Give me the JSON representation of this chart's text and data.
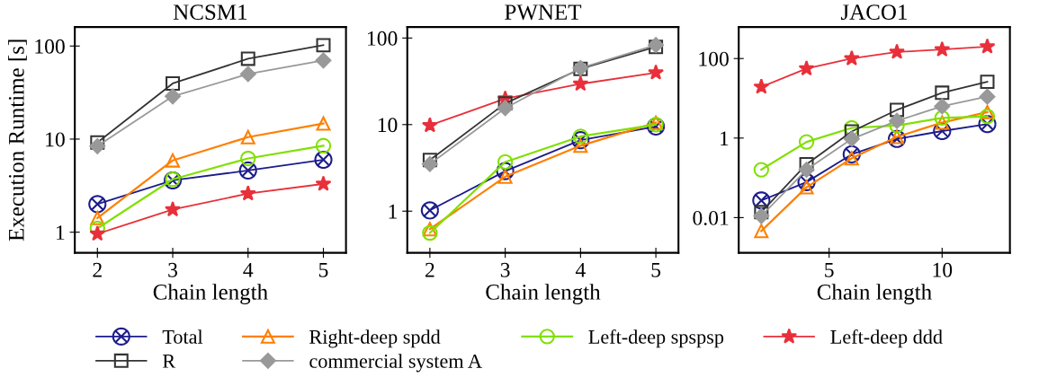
{
  "chart_data": [
    {
      "type": "line",
      "title": "NCSM1",
      "xlabel": "Chain length",
      "ylabel": "Execution Runtime [s]",
      "log": "y",
      "x": [
        2,
        3,
        4,
        5
      ],
      "xlim": [
        1.7,
        5.3
      ],
      "xticks": [
        2,
        3,
        4,
        5
      ],
      "ylim": [
        0.6,
        160
      ],
      "yticks": [
        1,
        10,
        100
      ],
      "legend": "bottom",
      "grid": false,
      "series": [
        {
          "name": "Total",
          "color": "#1c1c8c",
          "marker": "cross",
          "values": [
            2.0,
            3.6,
            4.6,
            6.0
          ]
        },
        {
          "name": "Right-deep spdd",
          "color": "#ff7f00",
          "marker": "triangle",
          "values": [
            1.42,
            5.9,
            10.5,
            14.7
          ]
        },
        {
          "name": "Left-deep spspsp",
          "color": "#80e000",
          "marker": "circle",
          "values": [
            1.1,
            3.7,
            6.2,
            8.5
          ]
        },
        {
          "name": "Left-deep ddd",
          "color": "#e8303a",
          "marker": "star",
          "values": [
            0.96,
            1.75,
            2.6,
            3.3
          ]
        },
        {
          "name": "R",
          "color": "#333333",
          "marker": "square",
          "values": [
            9.2,
            39.6,
            73,
            102
          ]
        },
        {
          "name": "commercial system A",
          "color": "#999999",
          "marker": "diamond",
          "values": [
            8.4,
            28.8,
            50,
            70
          ]
        }
      ]
    },
    {
      "type": "line",
      "title": "PWNET",
      "xlabel": "Chain length",
      "log": "y",
      "x": [
        2,
        3,
        4,
        5
      ],
      "xlim": [
        1.7,
        5.3
      ],
      "xticks": [
        2,
        3,
        4,
        5
      ],
      "ylim": [
        0.33,
        134
      ],
      "yticks": [
        1,
        10,
        100
      ],
      "grid": false,
      "series": [
        {
          "color": "#1c1c8c",
          "marker": "cross",
          "values": [
            1.02,
            2.9,
            6.6,
            9.5
          ]
        },
        {
          "color": "#ff7f00",
          "marker": "triangle",
          "values": [
            0.62,
            2.5,
            5.7,
            10.5
          ]
        },
        {
          "color": "#80e000",
          "marker": "circle",
          "values": [
            0.56,
            3.7,
            7.3,
            10
          ]
        },
        {
          "color": "#e8303a",
          "marker": "star",
          "values": [
            9.8,
            19.9,
            29.5,
            39.8
          ]
        },
        {
          "color": "#333333",
          "marker": "square",
          "values": [
            3.9,
            17.6,
            44,
            79
          ]
        },
        {
          "color": "#999999",
          "marker": "diamond",
          "values": [
            3.5,
            15.5,
            45,
            83
          ]
        }
      ]
    },
    {
      "type": "line",
      "title": "JACO1",
      "xlabel": "Chain length",
      "log": "y",
      "x": [
        2,
        4,
        6,
        8,
        10,
        12
      ],
      "xlim": [
        1,
        13
      ],
      "xticks": [
        5,
        10
      ],
      "ylim": [
        0.0013,
        620
      ],
      "yticks": [
        0.01,
        1,
        100
      ],
      "grid": false,
      "series": [
        {
          "color": "#1c1c8c",
          "marker": "cross",
          "values": [
            0.027,
            0.078,
            0.39,
            0.95,
            1.5,
            2.25
          ]
        },
        {
          "color": "#ff7f00",
          "marker": "triangle",
          "values": [
            0.0046,
            0.058,
            0.31,
            1.07,
            2.45,
            4.5
          ]
        },
        {
          "color": "#80e000",
          "marker": "circle",
          "values": [
            0.16,
            0.8,
            1.8,
            2.07,
            3.2,
            3.5
          ]
        },
        {
          "color": "#e8303a",
          "marker": "star",
          "values": [
            19.4,
            56,
            100,
            146,
            168,
            200
          ]
        },
        {
          "color": "#333333",
          "marker": "square",
          "values": [
            0.0137,
            0.22,
            1.46,
            5.1,
            13.8,
            26
          ]
        },
        {
          "color": "#999999",
          "marker": "diamond",
          "values": [
            0.011,
            0.16,
            0.95,
            2.7,
            6.3,
            11
          ]
        }
      ]
    }
  ]
}
